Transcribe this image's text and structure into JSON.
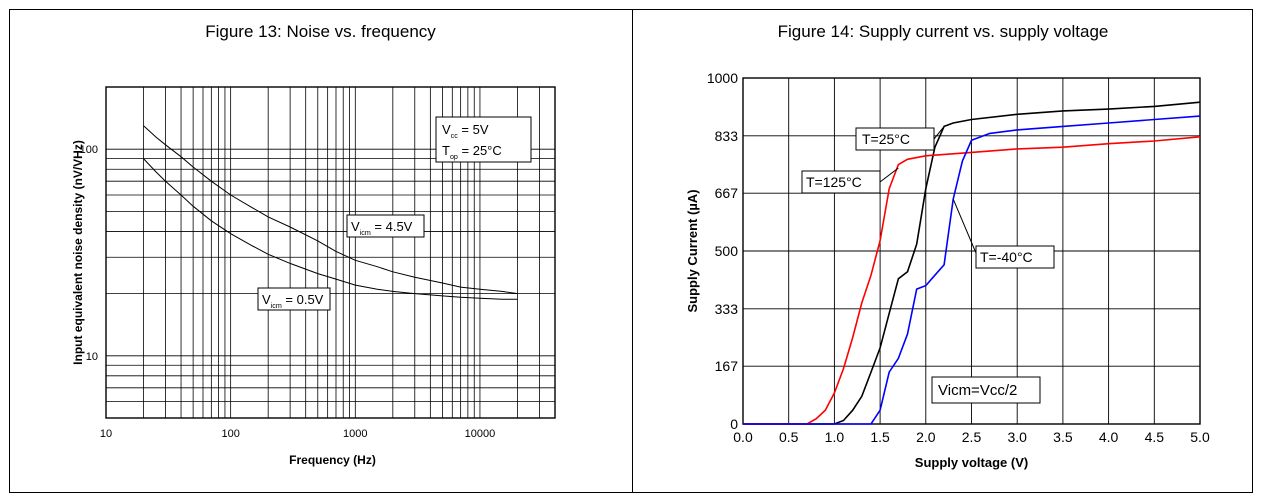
{
  "chart_data": [
    {
      "type": "line",
      "title": "Figure 13: Noise vs. frequency",
      "xlabel": "Frequency (Hz)",
      "ylabel": "Input equivalent noise density (nV/VHz)",
      "x_scale": "log",
      "y_scale": "log",
      "xlim": [
        10,
        40000
      ],
      "ylim": [
        5,
        200
      ],
      "x_ticks": [
        10,
        100,
        1000,
        10000
      ],
      "x_tick_labels": [
        "10",
        "100",
        "1000",
        "10000"
      ],
      "y_ticks": [
        10,
        100
      ],
      "y_tick_labels": [
        "10",
        "100"
      ],
      "grid": true,
      "annotations": {
        "conditions": {
          "vcc": "V",
          "vcc_sub": "cc",
          "vcc_val": " = 5V",
          "top": "T",
          "top_sub": "op",
          "top_val": " = 25°C"
        },
        "series_a": {
          "v": "V",
          "sub": "icm",
          "val": " = 4.5V"
        },
        "series_b": {
          "v": "V",
          "sub": "icm",
          "val": " = 0.5V"
        }
      },
      "series": [
        {
          "x": [
            20,
            25,
            30,
            40,
            50,
            70,
            100,
            150,
            200,
            300,
            500,
            700,
            1000,
            1500,
            2000,
            3000,
            5000,
            7000,
            10000,
            15000,
            20000
          ],
          "y": [
            130,
            115,
            105,
            92,
            82,
            70,
            60,
            52,
            47,
            42,
            36,
            32,
            29,
            27,
            25.5,
            24,
            22.5,
            21.5,
            21,
            20.5,
            20
          ]
        },
        {
          "x": [
            20,
            25,
            30,
            40,
            50,
            70,
            100,
            150,
            200,
            300,
            500,
            700,
            1000,
            1500,
            2000,
            3000,
            5000,
            7000,
            10000,
            15000,
            20000
          ],
          "y": [
            90,
            78,
            70,
            60,
            53,
            45,
            39,
            34,
            31,
            28,
            25,
            23.5,
            22,
            21,
            20.5,
            20,
            19.5,
            19.2,
            19,
            18.8,
            18.8
          ]
        }
      ]
    },
    {
      "type": "line",
      "title": "Figure 14: Supply current vs. supply voltage",
      "xlabel": "Supply voltage (V)",
      "ylabel": "Supply Current (µA)",
      "xlim": [
        0,
        5
      ],
      "ylim": [
        0,
        1000
      ],
      "x_ticks": [
        0,
        0.5,
        1,
        1.5,
        2,
        2.5,
        3,
        3.5,
        4,
        4.5,
        5
      ],
      "x_tick_labels": [
        "0.0",
        "0.5",
        "1.0",
        "1.5",
        "2.0",
        "2.5",
        "3.0",
        "3.5",
        "4.0",
        "4.5",
        "5.0"
      ],
      "y_ticks": [
        0,
        167,
        333,
        500,
        667,
        833,
        1000
      ],
      "y_tick_labels": [
        "0",
        "167",
        "333",
        "500",
        "667",
        "833",
        "1000"
      ],
      "grid": true,
      "annotation": "Vicm=Vcc/2",
      "series": [
        {
          "name": "T=25°C",
          "color": "#000000",
          "x": [
            0,
            1.0,
            1.1,
            1.2,
            1.3,
            1.4,
            1.5,
            1.6,
            1.7,
            1.8,
            1.9,
            2.0,
            2.1,
            2.2,
            2.3,
            2.5,
            3.0,
            3.5,
            4.0,
            4.5,
            5.0
          ],
          "y": [
            0,
            0,
            10,
            40,
            80,
            150,
            220,
            320,
            420,
            440,
            520,
            680,
            800,
            860,
            870,
            880,
            895,
            905,
            910,
            918,
            930
          ]
        },
        {
          "name": "T=125°C",
          "color": "#ff0000",
          "x": [
            0,
            0.7,
            0.8,
            0.9,
            1.0,
            1.1,
            1.2,
            1.3,
            1.4,
            1.5,
            1.6,
            1.7,
            1.8,
            2.0,
            2.5,
            3.0,
            3.5,
            4.0,
            4.5,
            5.0
          ],
          "y": [
            0,
            0,
            15,
            40,
            90,
            160,
            250,
            350,
            430,
            530,
            680,
            750,
            765,
            775,
            785,
            795,
            800,
            810,
            818,
            830
          ]
        },
        {
          "name": "T=-40°C",
          "color": "#0000ff",
          "x": [
            0,
            1.4,
            1.5,
            1.6,
            1.7,
            1.8,
            1.9,
            2.0,
            2.1,
            2.2,
            2.3,
            2.4,
            2.5,
            2.7,
            3.0,
            3.5,
            4.0,
            4.5,
            5.0
          ],
          "y": [
            0,
            0,
            40,
            150,
            190,
            260,
            390,
            400,
            430,
            460,
            650,
            760,
            820,
            840,
            850,
            860,
            870,
            880,
            890
          ]
        }
      ]
    }
  ]
}
